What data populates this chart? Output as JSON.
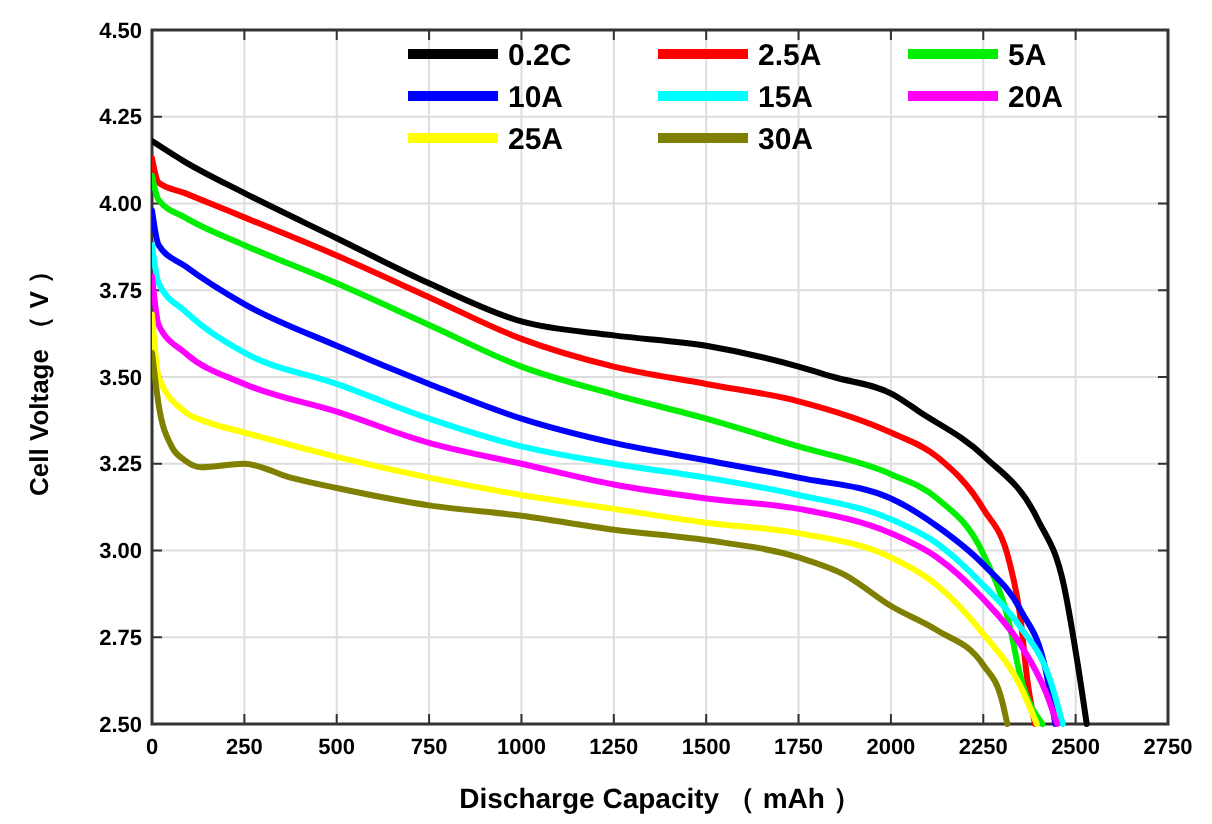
{
  "chart_data": {
    "type": "line",
    "xlabel": "Discharge Capacity （ mAh ）",
    "ylabel": "Cell Voltage （ V ）",
    "xlim": [
      0,
      2750
    ],
    "xticks": [
      0,
      250,
      500,
      750,
      1000,
      1250,
      1500,
      1750,
      2000,
      2250,
      2500,
      2750
    ],
    "ylim": [
      2.5,
      4.5
    ],
    "yticks": [
      {
        "value": 2.5,
        "label": "2.50"
      },
      2.75,
      {
        "value": 3,
        "label": "3.00"
      },
      3.25,
      {
        "value": 3.5,
        "label": "3.50"
      },
      3.75,
      {
        "value": 4,
        "label": "4.00"
      },
      4.25,
      {
        "value": 4.5,
        "label": "4.50"
      }
    ],
    "grid": true,
    "legend": "top right",
    "marker": "none",
    "line_style": "solid",
    "series": [
      {
        "name": "0.2C",
        "color": "#000000",
        "x": [
          0,
          89,
          250,
          500,
          750,
          1000,
          1250,
          1500,
          1750,
          1845,
          2005,
          2077,
          2254,
          2397,
          2468,
          2503,
          2530
        ],
        "values": [
          4.18,
          4.12,
          4.03,
          3.9,
          3.77,
          3.66,
          3.62,
          3.59,
          3.53,
          3.5,
          3.45,
          3.4,
          3.27,
          3.09,
          2.9,
          2.69,
          2.5
        ]
      },
      {
        "name": "2.5A",
        "color": "#ff0000",
        "x": [
          0,
          18,
          89,
          250,
          500,
          750,
          1000,
          1250,
          1500,
          1750,
          2000,
          2125,
          2250,
          2320,
          2350,
          2370,
          2390
        ],
        "values": [
          4.13,
          4.06,
          4.03,
          3.96,
          3.85,
          3.73,
          3.61,
          3.53,
          3.48,
          3.43,
          3.34,
          3.27,
          3.12,
          2.97,
          2.81,
          2.62,
          2.5
        ]
      },
      {
        "name": "5A",
        "color": "#00ee00",
        "x": [
          0,
          18,
          89,
          250,
          500,
          750,
          1000,
          1250,
          1500,
          1750,
          2000,
          2125,
          2250,
          2320,
          2350,
          2410
        ],
        "values": [
          4.08,
          4.01,
          3.96,
          3.88,
          3.77,
          3.65,
          3.53,
          3.45,
          3.38,
          3.3,
          3.22,
          3.15,
          2.99,
          2.79,
          2.64,
          2.5
        ]
      },
      {
        "name": "10A",
        "color": "#0000ff",
        "x": [
          0,
          18,
          89,
          250,
          500,
          750,
          1000,
          1250,
          1500,
          1750,
          2000,
          2125,
          2250,
          2350,
          2420,
          2445
        ],
        "values": [
          3.98,
          3.88,
          3.82,
          3.71,
          3.59,
          3.48,
          3.38,
          3.31,
          3.26,
          3.21,
          3.15,
          3.07,
          2.96,
          2.83,
          2.65,
          2.5
        ]
      },
      {
        "name": "15A",
        "color": "#00ffff",
        "x": [
          0,
          18,
          89,
          250,
          500,
          750,
          1000,
          1250,
          1500,
          1750,
          2000,
          2125,
          2250,
          2350,
          2430,
          2465
        ],
        "values": [
          3.88,
          3.77,
          3.69,
          3.57,
          3.48,
          3.38,
          3.3,
          3.25,
          3.21,
          3.16,
          3.09,
          3.02,
          2.9,
          2.78,
          2.63,
          2.5
        ]
      },
      {
        "name": "20A",
        "color": "#ff00ff",
        "x": [
          0,
          18,
          89,
          250,
          500,
          750,
          1000,
          1250,
          1500,
          1750,
          2000,
          2125,
          2250,
          2350,
          2420,
          2450
        ],
        "values": [
          3.79,
          3.65,
          3.57,
          3.48,
          3.4,
          3.31,
          3.25,
          3.19,
          3.15,
          3.12,
          3.05,
          2.98,
          2.86,
          2.73,
          2.59,
          2.5
        ]
      },
      {
        "name": "25A",
        "color": "#ffff00",
        "x": [
          0,
          18,
          89,
          150,
          250,
          500,
          750,
          1000,
          1250,
          1500,
          1750,
          2000,
          2125,
          2250,
          2350,
          2395
        ],
        "values": [
          3.68,
          3.5,
          3.4,
          3.37,
          3.34,
          3.27,
          3.21,
          3.16,
          3.12,
          3.08,
          3.05,
          2.98,
          2.9,
          2.76,
          2.61,
          2.5
        ]
      },
      {
        "name": "30A",
        "color": "#808000",
        "x": [
          0,
          18,
          53,
          89,
          133,
          250,
          375,
          500,
          750,
          1000,
          1250,
          1500,
          1750,
          1875,
          2000,
          2125,
          2250,
          2300,
          2315
        ],
        "values": [
          3.57,
          3.42,
          3.3,
          3.26,
          3.24,
          3.25,
          3.21,
          3.18,
          3.13,
          3.1,
          3.06,
          3.03,
          2.98,
          2.93,
          2.84,
          2.77,
          2.67,
          2.57,
          2.5
        ]
      }
    ]
  }
}
